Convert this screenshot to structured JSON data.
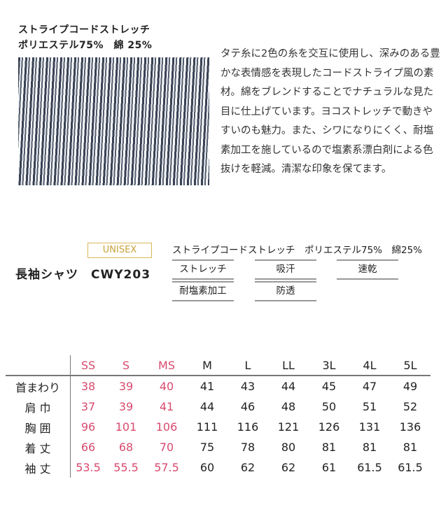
{
  "fabric": {
    "name": "ストライプコードストレッチ",
    "composition": "ポリエステル75%　綿 25%",
    "description": "タテ糸に2色の糸を交互に使用し、深みのある豊かな表情感を表現したコードストライプ風の素材。綿をブレンドすることでナチュラルな見た目に仕上げています。ヨコストレッチで動きやすいのも魅力。また、シワになりにくく、耐塩素加工を施しているので塩素系漂白剤による色抜けを軽減。清潔な印象を保てます。"
  },
  "product": {
    "badge": "UNISEX",
    "name": "長袖シャツ　CWY203",
    "fabric_line": "ストライプコードストレッチ　ポリエステル75%　綿25%",
    "features": [
      "ストレッチ",
      "吸汗",
      "速乾",
      "耐塩素加工",
      "防透"
    ]
  },
  "colors": {
    "badge": "#d9b654",
    "small_sizes": "#d84a6e"
  },
  "size_table": {
    "headers": [
      "SS",
      "S",
      "MS",
      "M",
      "L",
      "LL",
      "3L",
      "4L",
      "5L"
    ],
    "rows": [
      {
        "label": "首まわり",
        "values": [
          "38",
          "39",
          "40",
          "41",
          "43",
          "44",
          "45",
          "47",
          "49"
        ]
      },
      {
        "label": "肩 巾",
        "values": [
          "37",
          "39",
          "41",
          "44",
          "46",
          "48",
          "50",
          "51",
          "52"
        ]
      },
      {
        "label": "胸 囲",
        "values": [
          "96",
          "101",
          "106",
          "111",
          "116",
          "121",
          "126",
          "131",
          "136"
        ]
      },
      {
        "label": "着 丈",
        "values": [
          "66",
          "68",
          "70",
          "75",
          "78",
          "80",
          "81",
          "81",
          "81"
        ]
      },
      {
        "label": "袖 丈",
        "values": [
          "53.5",
          "55.5",
          "57.5",
          "60",
          "62",
          "62",
          "61",
          "61.5",
          "61.5"
        ]
      }
    ]
  }
}
